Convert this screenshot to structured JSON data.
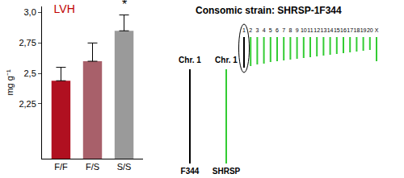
{
  "chart_data": {
    "type": "bar",
    "title": "LVH",
    "categories": [
      "F/F",
      "F/S",
      "S/S"
    ],
    "values": [
      2.44,
      2.6,
      2.85
    ],
    "errors": [
      0.11,
      0.15,
      0.13
    ],
    "colors": [
      "#b01020",
      "#a8606a",
      "#9a9a9a"
    ],
    "y_label": "mg g⁻¹",
    "ylim": [
      1.8,
      3.05
    ],
    "yticks": [
      {
        "value": 2.25,
        "label": "2,25"
      },
      {
        "value": 2.5,
        "label": "2,5"
      },
      {
        "value": 2.75,
        "label": "2,75"
      },
      {
        "value": 3.0,
        "label": "3,0"
      }
    ],
    "grid": false,
    "annotations": [
      {
        "text": "*",
        "x": "S/S",
        "y": 3.0
      }
    ]
  },
  "diagram": {
    "title": "Consomic strain: SHRSP-1F344",
    "strains": [
      {
        "label": "F344",
        "chromosome": "Chr. 1",
        "color": "#000000"
      },
      {
        "label": "SHRSP",
        "chromosome": "Chr. 1",
        "color": "#33cc33"
      }
    ],
    "chromosomes": [
      "1",
      "2",
      "3",
      "4",
      "5",
      "6",
      "7",
      "8",
      "9",
      "10",
      "11",
      "12",
      "13",
      "14",
      "15",
      "16",
      "17",
      "18",
      "19",
      "20",
      "X"
    ],
    "introgressed": "1"
  }
}
